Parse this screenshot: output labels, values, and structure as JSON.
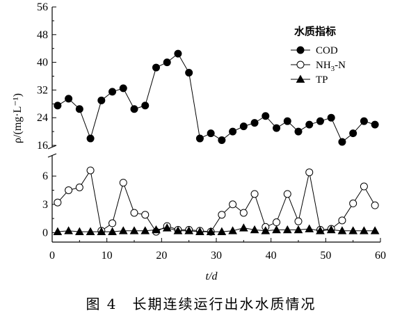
{
  "chart_data": {
    "type": "line",
    "caption": "图 4　长期连续运行出水水质情况",
    "xlabel": "t/d",
    "ylabel": "ρ/(mg·L⁻¹)",
    "xlim": [
      0,
      60
    ],
    "x_ticks": [
      "0",
      "10",
      "20",
      "30",
      "40",
      "50",
      "60"
    ],
    "upper_ylim": [
      16,
      56
    ],
    "upper_y_ticks": [
      "16",
      "24",
      "32",
      "40",
      "48",
      "56"
    ],
    "lower_ylim": [
      -1,
      8
    ],
    "lower_y_ticks": [
      "0",
      "3",
      "6"
    ],
    "legend": {
      "title": "水质指标",
      "placement": "top-right"
    },
    "series": [
      {
        "name": "COD",
        "marker": "filled-circle",
        "panel": "upper",
        "x": [
          1,
          3,
          5,
          7,
          9,
          11,
          13,
          15,
          17,
          19,
          21,
          23,
          25,
          27,
          29,
          31,
          33,
          35,
          37,
          39,
          41,
          43,
          45,
          47,
          49,
          51,
          53,
          55,
          57,
          59
        ],
        "y": [
          27.5,
          29.5,
          26.5,
          18.0,
          29.0,
          31.5,
          32.5,
          26.5,
          27.5,
          38.5,
          40.0,
          42.5,
          37.0,
          18.0,
          19.5,
          17.5,
          20.0,
          21.5,
          22.5,
          24.5,
          21.0,
          23.0,
          20.0,
          22.0,
          23.0,
          24.0,
          17.0,
          19.5,
          23.0,
          22.0
        ]
      },
      {
        "name": "NH3-N",
        "name_main": "NH",
        "name_sub": "3",
        "name_tail": "-N",
        "marker": "open-circle",
        "panel": "lower",
        "x": [
          1,
          3,
          5,
          7,
          9,
          11,
          13,
          15,
          17,
          19,
          21,
          23,
          25,
          27,
          29,
          31,
          33,
          35,
          37,
          39,
          41,
          43,
          45,
          47,
          49,
          51,
          53,
          55,
          57,
          59
        ],
        "y": [
          3.2,
          4.5,
          4.8,
          6.6,
          0.2,
          1.0,
          5.3,
          2.1,
          1.9,
          0.1,
          0.7,
          0.3,
          0.3,
          0.2,
          0.1,
          1.9,
          3.0,
          2.1,
          4.1,
          0.6,
          1.1,
          4.1,
          1.2,
          6.4,
          0.3,
          0.4,
          1.3,
          3.1,
          4.9,
          2.9
        ]
      },
      {
        "name": "TP",
        "marker": "filled-triangle",
        "panel": "lower",
        "x": [
          1,
          3,
          5,
          7,
          9,
          11,
          13,
          15,
          17,
          19,
          21,
          23,
          25,
          27,
          29,
          31,
          33,
          35,
          37,
          39,
          41,
          43,
          45,
          47,
          49,
          51,
          53,
          55,
          57,
          59
        ],
        "y": [
          0.1,
          0.2,
          0.1,
          0.1,
          0.1,
          0.1,
          0.2,
          0.2,
          0.2,
          0.3,
          0.5,
          0.2,
          0.2,
          0.1,
          0.1,
          0.1,
          0.2,
          0.5,
          0.3,
          0.2,
          0.3,
          0.3,
          0.3,
          0.4,
          0.2,
          0.3,
          0.2,
          0.2,
          0.2,
          0.2
        ]
      }
    ]
  }
}
